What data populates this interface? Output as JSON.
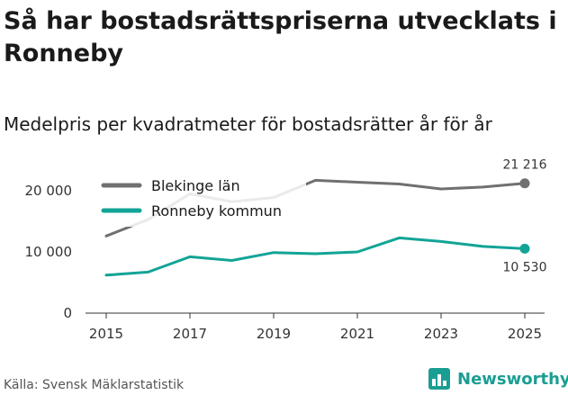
{
  "header": {
    "title": "Så har bostadsrättspriserna utvecklats i Ronneby",
    "subtitle": "Medelpris per kvadratmeter för bostadsrätter år för år"
  },
  "footer": {
    "source": "Källa: Svensk Mäklarstatistik",
    "brand": "Newsworthy",
    "brand_icon": "bar-chart-logo-icon",
    "brand_color": "#1b9e92"
  },
  "chart_data": {
    "type": "line",
    "x": [
      2015,
      2016,
      2017,
      2018,
      2019,
      2020,
      2021,
      2022,
      2023,
      2024,
      2025
    ],
    "x_tick_labels": [
      "2015",
      "2017",
      "2019",
      "2021",
      "2023",
      "2025"
    ],
    "y_tick_labels": [
      "0",
      "10 000",
      "20 000"
    ],
    "ylim": [
      0,
      25000
    ],
    "grid": false,
    "legend": "top-left",
    "series": [
      {
        "name": "Blekinge län",
        "color": "#707070",
        "values": [
          12600,
          15300,
          19500,
          18200,
          18900,
          21700,
          21400,
          21100,
          20300,
          20600,
          21216
        ],
        "end_label": "21 216"
      },
      {
        "name": "Ronneby kommun",
        "color": "#12a496",
        "values": [
          6200,
          6700,
          9200,
          8600,
          9900,
          9700,
          10000,
          12300,
          11700,
          10900,
          10530
        ],
        "end_label": "10 530"
      }
    ]
  }
}
